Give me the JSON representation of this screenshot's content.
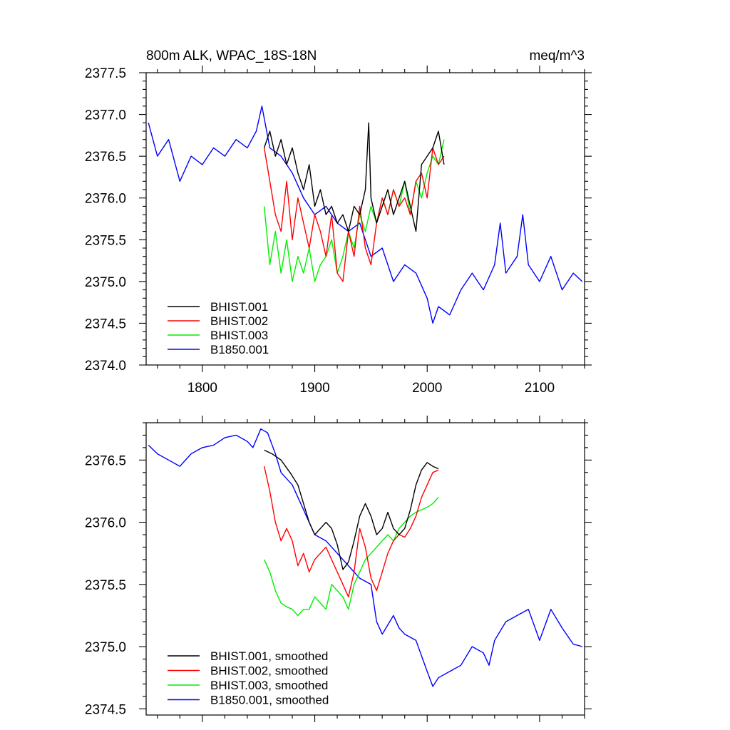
{
  "figure_title": "800m ALK, WPAC_18S-18N",
  "units": "meq/m^3",
  "colors": {
    "BHIST.001": "#000000",
    "BHIST.002": "#ff0000",
    "BHIST.003": "#00ee00",
    "B1850.001": "#0000ff"
  },
  "chart_data": [
    {
      "type": "line",
      "panel": "top",
      "title": "800m ALK, WPAC_18S-18N",
      "units": "meq/m^3",
      "xlabel": "",
      "ylabel": "",
      "xlim": [
        1750,
        2140
      ],
      "ylim": [
        2374.0,
        2377.5
      ],
      "xticks": [
        1800,
        1900,
        2000,
        2100
      ],
      "xtick_labels": [
        "1800",
        "1900",
        "2000",
        "2100"
      ],
      "yticks": [
        2374.0,
        2374.5,
        2375.0,
        2375.5,
        2376.0,
        2376.5,
        2377.0,
        2377.5
      ],
      "ytick_labels": [
        "2374.0",
        "2374.5",
        "2375.0",
        "2375.5",
        "2376.0",
        "2376.5",
        "2377.0",
        "2377.5"
      ],
      "legend_position": "bottom-left",
      "series": [
        {
          "name": "BHIST.001",
          "label": "BHIST.001",
          "x": [
            1855,
            1860,
            1865,
            1870,
            1875,
            1880,
            1885,
            1890,
            1895,
            1900,
            1905,
            1910,
            1915,
            1920,
            1925,
            1930,
            1935,
            1940,
            1945,
            1948,
            1950,
            1955,
            1960,
            1965,
            1970,
            1975,
            1980,
            1985,
            1990,
            1995,
            2000,
            2005,
            2010,
            2015
          ],
          "y": [
            2376.6,
            2376.8,
            2376.5,
            2376.7,
            2376.4,
            2376.6,
            2376.3,
            2376.1,
            2376.4,
            2375.9,
            2376.1,
            2375.8,
            2375.9,
            2375.7,
            2375.8,
            2375.6,
            2375.9,
            2375.8,
            2376.1,
            2376.9,
            2376.0,
            2375.7,
            2375.9,
            2376.1,
            2375.8,
            2376.0,
            2376.2,
            2375.9,
            2375.6,
            2376.4,
            2376.5,
            2376.6,
            2376.8,
            2376.4
          ]
        },
        {
          "name": "BHIST.002",
          "label": "BHIST.002",
          "x": [
            1855,
            1860,
            1865,
            1870,
            1875,
            1880,
            1885,
            1890,
            1895,
            1900,
            1905,
            1910,
            1915,
            1920,
            1925,
            1930,
            1935,
            1940,
            1945,
            1950,
            1955,
            1960,
            1965,
            1970,
            1975,
            1980,
            1985,
            1990,
            1995,
            2000,
            2005,
            2010,
            2015
          ],
          "y": [
            2376.6,
            2376.2,
            2375.8,
            2375.6,
            2376.2,
            2375.5,
            2376.0,
            2375.7,
            2375.4,
            2375.8,
            2375.6,
            2375.3,
            2375.8,
            2375.1,
            2375.0,
            2375.6,
            2375.3,
            2375.9,
            2375.4,
            2375.2,
            2375.7,
            2376.0,
            2375.8,
            2376.1,
            2375.9,
            2376.0,
            2375.8,
            2376.2,
            2376.3,
            2376.0,
            2376.6,
            2376.4,
            2376.5
          ]
        },
        {
          "name": "BHIST.003",
          "label": "BHIST.003",
          "x": [
            1855,
            1860,
            1865,
            1870,
            1875,
            1880,
            1885,
            1890,
            1895,
            1900,
            1905,
            1910,
            1915,
            1920,
            1925,
            1930,
            1935,
            1940,
            1945,
            1950,
            1955,
            1960,
            1965,
            1970,
            1975,
            1980,
            1985,
            1990,
            1995,
            2000,
            2005,
            2010,
            2015
          ],
          "y": [
            2375.9,
            2375.2,
            2375.6,
            2375.1,
            2375.5,
            2375.0,
            2375.3,
            2375.1,
            2375.4,
            2375.0,
            2375.2,
            2375.3,
            2375.5,
            2375.1,
            2375.3,
            2375.6,
            2375.4,
            2375.8,
            2375.6,
            2375.9,
            2375.7,
            2376.0,
            2375.8,
            2376.1,
            2375.9,
            2376.2,
            2375.8,
            2376.2,
            2376.0,
            2376.3,
            2376.5,
            2376.4,
            2376.7
          ]
        },
        {
          "name": "B1850.001",
          "label": "B1850.001",
          "x": [
            1752,
            1760,
            1770,
            1780,
            1790,
            1800,
            1810,
            1820,
            1830,
            1840,
            1848,
            1853,
            1860,
            1870,
            1880,
            1890,
            1900,
            1910,
            1920,
            1930,
            1940,
            1950,
            1960,
            1970,
            1980,
            1990,
            2000,
            2005,
            2010,
            2020,
            2030,
            2040,
            2050,
            2060,
            2065,
            2070,
            2080,
            2085,
            2090,
            2100,
            2110,
            2120,
            2130,
            2138
          ],
          "y": [
            2376.9,
            2376.5,
            2376.7,
            2376.2,
            2376.5,
            2376.4,
            2376.6,
            2376.5,
            2376.7,
            2376.6,
            2376.8,
            2377.1,
            2376.6,
            2376.5,
            2376.3,
            2376.0,
            2375.8,
            2375.9,
            2375.7,
            2375.6,
            2375.7,
            2375.3,
            2375.4,
            2375.0,
            2375.2,
            2375.1,
            2374.8,
            2374.5,
            2374.7,
            2374.6,
            2374.9,
            2375.1,
            2374.9,
            2375.2,
            2375.7,
            2375.1,
            2375.3,
            2375.8,
            2375.2,
            2375.0,
            2375.3,
            2374.9,
            2375.1,
            2375.0
          ]
        }
      ]
    },
    {
      "type": "line",
      "panel": "bottom",
      "title": "",
      "xlabel": "",
      "ylabel": "",
      "xlim": [
        1750,
        2140
      ],
      "ylim": [
        2374.45,
        2376.8
      ],
      "xticks": [
        1800,
        1900,
        2000,
        2100
      ],
      "xtick_labels": [],
      "yticks": [
        2374.5,
        2375.0,
        2375.5,
        2376.0,
        2376.5
      ],
      "ytick_labels": [
        "2374.5",
        "2375.0",
        "2375.5",
        "2376.0",
        "2376.5"
      ],
      "legend_position": "bottom-left",
      "series": [
        {
          "name": "BHIST.001",
          "label": "BHIST.001, smoothed",
          "x": [
            1855,
            1862,
            1870,
            1878,
            1885,
            1890,
            1895,
            1900,
            1905,
            1910,
            1915,
            1920,
            1925,
            1930,
            1935,
            1940,
            1945,
            1950,
            1955,
            1960,
            1965,
            1970,
            1975,
            1980,
            1985,
            1990,
            1995,
            2000,
            2005,
            2010
          ],
          "y": [
            2376.58,
            2376.55,
            2376.5,
            2376.4,
            2376.3,
            2376.15,
            2376.0,
            2375.9,
            2375.95,
            2376.0,
            2375.95,
            2375.82,
            2375.62,
            2375.68,
            2375.85,
            2376.05,
            2376.15,
            2376.05,
            2375.9,
            2375.95,
            2376.08,
            2375.95,
            2375.9,
            2375.95,
            2376.1,
            2376.3,
            2376.42,
            2376.48,
            2376.45,
            2376.43
          ]
        },
        {
          "name": "BHIST.002",
          "label": "BHIST.002, smoothed",
          "x": [
            1855,
            1860,
            1865,
            1870,
            1875,
            1880,
            1885,
            1890,
            1895,
            1900,
            1905,
            1910,
            1915,
            1920,
            1925,
            1930,
            1935,
            1940,
            1945,
            1950,
            1955,
            1960,
            1965,
            1970,
            1975,
            1980,
            1985,
            1990,
            1995,
            2000,
            2005,
            2010
          ],
          "y": [
            2376.45,
            2376.25,
            2376.0,
            2375.85,
            2375.95,
            2375.85,
            2375.65,
            2375.75,
            2375.6,
            2375.7,
            2375.75,
            2375.8,
            2375.7,
            2375.6,
            2375.5,
            2375.4,
            2375.6,
            2375.95,
            2375.8,
            2375.55,
            2375.45,
            2375.6,
            2375.75,
            2375.85,
            2375.9,
            2375.88,
            2375.95,
            2376.05,
            2376.2,
            2376.3,
            2376.4,
            2376.42
          ]
        },
        {
          "name": "BHIST.003",
          "label": "BHIST.003, smoothed",
          "x": [
            1855,
            1860,
            1865,
            1870,
            1875,
            1880,
            1885,
            1890,
            1895,
            1900,
            1905,
            1910,
            1915,
            1920,
            1925,
            1930,
            1935,
            1940,
            1945,
            1950,
            1955,
            1960,
            1965,
            1970,
            1975,
            1980,
            1985,
            1990,
            1995,
            2000,
            2005,
            2010
          ],
          "y": [
            2375.7,
            2375.6,
            2375.45,
            2375.35,
            2375.32,
            2375.3,
            2375.25,
            2375.3,
            2375.3,
            2375.4,
            2375.35,
            2375.3,
            2375.5,
            2375.45,
            2375.4,
            2375.3,
            2375.5,
            2375.6,
            2375.7,
            2375.75,
            2375.8,
            2375.85,
            2375.9,
            2375.85,
            2375.95,
            2376.0,
            2376.05,
            2376.08,
            2376.1,
            2376.12,
            2376.15,
            2376.2
          ]
        },
        {
          "name": "B1850.001",
          "label": "B1850.001, smoothed",
          "x": [
            1752,
            1760,
            1770,
            1780,
            1790,
            1800,
            1810,
            1820,
            1830,
            1840,
            1845,
            1852,
            1858,
            1865,
            1870,
            1880,
            1890,
            1900,
            1910,
            1920,
            1930,
            1940,
            1950,
            1955,
            1960,
            1970,
            1975,
            1980,
            1990,
            2000,
            2005,
            2010,
            2020,
            2030,
            2040,
            2050,
            2055,
            2060,
            2070,
            2080,
            2090,
            2100,
            2110,
            2120,
            2130,
            2138
          ],
          "y": [
            2376.62,
            2376.55,
            2376.5,
            2376.45,
            2376.55,
            2376.6,
            2376.62,
            2376.68,
            2376.7,
            2376.65,
            2376.6,
            2376.75,
            2376.72,
            2376.55,
            2376.4,
            2376.3,
            2376.1,
            2375.9,
            2375.85,
            2375.75,
            2375.65,
            2375.55,
            2375.5,
            2375.2,
            2375.1,
            2375.25,
            2375.15,
            2375.1,
            2375.05,
            2374.8,
            2374.68,
            2374.75,
            2374.8,
            2374.85,
            2375.0,
            2374.95,
            2374.85,
            2375.05,
            2375.2,
            2375.25,
            2375.3,
            2375.05,
            2375.3,
            2375.15,
            2375.02,
            2375.0
          ]
        }
      ]
    }
  ]
}
